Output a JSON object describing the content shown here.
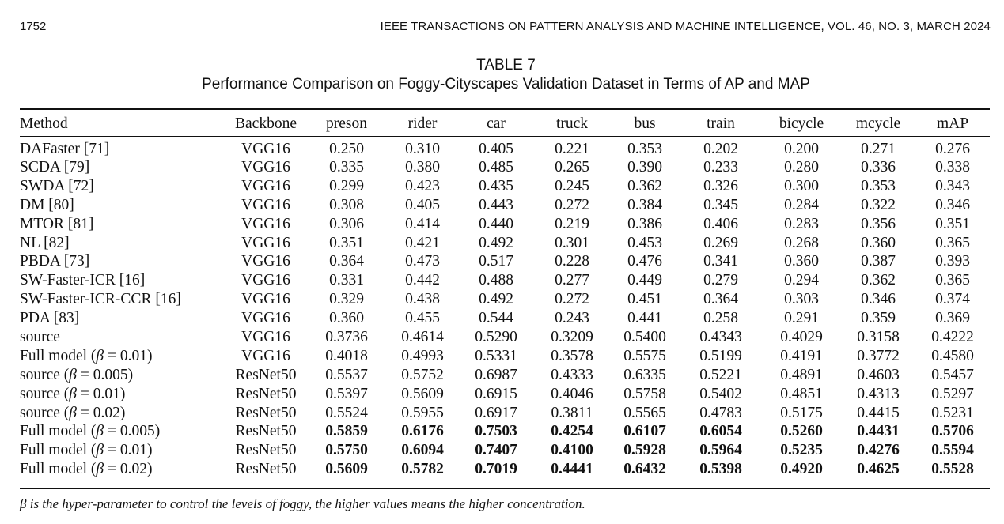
{
  "header": {
    "page_number": "1752",
    "running_title": "IEEE TRANSACTIONS ON PATTERN ANALYSIS AND MACHINE INTELLIGENCE, VOL. 46, NO. 3, MARCH 2024"
  },
  "table": {
    "label": "TABLE 7",
    "caption": "Performance Comparison on Foggy-Cityscapes Validation Dataset in Terms of AP and MAP",
    "columns": [
      "Method",
      "Backbone",
      "preson",
      "rider",
      "car",
      "truck",
      "bus",
      "train",
      "bicycle",
      "mcycle",
      "mAP"
    ],
    "rows": [
      {
        "method": "DAFaster [71]",
        "backbone": "VGG16",
        "values": [
          "0.250",
          "0.310",
          "0.405",
          "0.221",
          "0.353",
          "0.202",
          "0.200",
          "0.271",
          "0.276"
        ],
        "bold": false
      },
      {
        "method": "SCDA [79]",
        "backbone": "VGG16",
        "values": [
          "0.335",
          "0.380",
          "0.485",
          "0.265",
          "0.390",
          "0.233",
          "0.280",
          "0.336",
          "0.338"
        ],
        "bold": false
      },
      {
        "method": "SWDA [72]",
        "backbone": "VGG16",
        "values": [
          "0.299",
          "0.423",
          "0.435",
          "0.245",
          "0.362",
          "0.326",
          "0.300",
          "0.353",
          "0.343"
        ],
        "bold": false
      },
      {
        "method": "DM [80]",
        "backbone": "VGG16",
        "values": [
          "0.308",
          "0.405",
          "0.443",
          "0.272",
          "0.384",
          "0.345",
          "0.284",
          "0.322",
          "0.346"
        ],
        "bold": false
      },
      {
        "method": "MTOR [81]",
        "backbone": "VGG16",
        "values": [
          "0.306",
          "0.414",
          "0.440",
          "0.219",
          "0.386",
          "0.406",
          "0.283",
          "0.356",
          "0.351"
        ],
        "bold": false
      },
      {
        "method": "NL [82]",
        "backbone": "VGG16",
        "values": [
          "0.351",
          "0.421",
          "0.492",
          "0.301",
          "0.453",
          "0.269",
          "0.268",
          "0.360",
          "0.365"
        ],
        "bold": false
      },
      {
        "method": "PBDA [73]",
        "backbone": "VGG16",
        "values": [
          "0.364",
          "0.473",
          "0.517",
          "0.228",
          "0.476",
          "0.341",
          "0.360",
          "0.387",
          "0.393"
        ],
        "bold": false
      },
      {
        "method": "SW-Faster-ICR [16]",
        "backbone": "VGG16",
        "values": [
          "0.331",
          "0.442",
          "0.488",
          "0.277",
          "0.449",
          "0.279",
          "0.294",
          "0.362",
          "0.365"
        ],
        "bold": false
      },
      {
        "method": "SW-Faster-ICR-CCR [16]",
        "backbone": "VGG16",
        "values": [
          "0.329",
          "0.438",
          "0.492",
          "0.272",
          "0.451",
          "0.364",
          "0.303",
          "0.346",
          "0.374"
        ],
        "bold": false
      },
      {
        "method": "PDA [83]",
        "backbone": "VGG16",
        "values": [
          "0.360",
          "0.455",
          "0.544",
          "0.243",
          "0.441",
          "0.258",
          "0.291",
          "0.359",
          "0.369"
        ],
        "bold": false
      },
      {
        "method": "source",
        "backbone": "VGG16",
        "values": [
          "0.3736",
          "0.4614",
          "0.5290",
          "0.3209",
          "0.5400",
          "0.4343",
          "0.4029",
          "0.3158",
          "0.4222"
        ],
        "bold": false
      },
      {
        "method": "Full model (β = 0.01)",
        "backbone": "VGG16",
        "values": [
          "0.4018",
          "0.4993",
          "0.5331",
          "0.3578",
          "0.5575",
          "0.5199",
          "0.4191",
          "0.3772",
          "0.4580"
        ],
        "bold": false
      },
      {
        "method": "source (β = 0.005)",
        "backbone": "ResNet50",
        "values": [
          "0.5537",
          "0.5752",
          "0.6987",
          "0.4333",
          "0.6335",
          "0.5221",
          "0.4891",
          "0.4603",
          "0.5457"
        ],
        "bold": false
      },
      {
        "method": "source (β = 0.01)",
        "backbone": "ResNet50",
        "values": [
          "0.5397",
          "0.5609",
          "0.6915",
          "0.4046",
          "0.5758",
          "0.5402",
          "0.4851",
          "0.4313",
          "0.5297"
        ],
        "bold": false
      },
      {
        "method": "source (β = 0.02)",
        "backbone": "ResNet50",
        "values": [
          "0.5524",
          "0.5955",
          "0.6917",
          "0.3811",
          "0.5565",
          "0.4783",
          "0.5175",
          "0.4415",
          "0.5231"
        ],
        "bold": false
      },
      {
        "method": "Full model (β = 0.005)",
        "backbone": "ResNet50",
        "values": [
          "0.5859",
          "0.6176",
          "0.7503",
          "0.4254",
          "0.6107",
          "0.6054",
          "0.5260",
          "0.4431",
          "0.5706"
        ],
        "bold": true
      },
      {
        "method": "Full model (β = 0.01)",
        "backbone": "ResNet50",
        "values": [
          "0.5750",
          "0.6094",
          "0.7407",
          "0.4100",
          "0.5928",
          "0.5964",
          "0.5235",
          "0.4276",
          "0.5594"
        ],
        "bold": true
      },
      {
        "method": "Full model (β = 0.02)",
        "backbone": "ResNet50",
        "values": [
          "0.5609",
          "0.5782",
          "0.7019",
          "0.4441",
          "0.6432",
          "0.5398",
          "0.4920",
          "0.4625",
          "0.5528"
        ],
        "bold": true
      }
    ],
    "footnote": "β is the hyper-parameter to control the levels of foggy, the higher values means the higher concentration."
  }
}
